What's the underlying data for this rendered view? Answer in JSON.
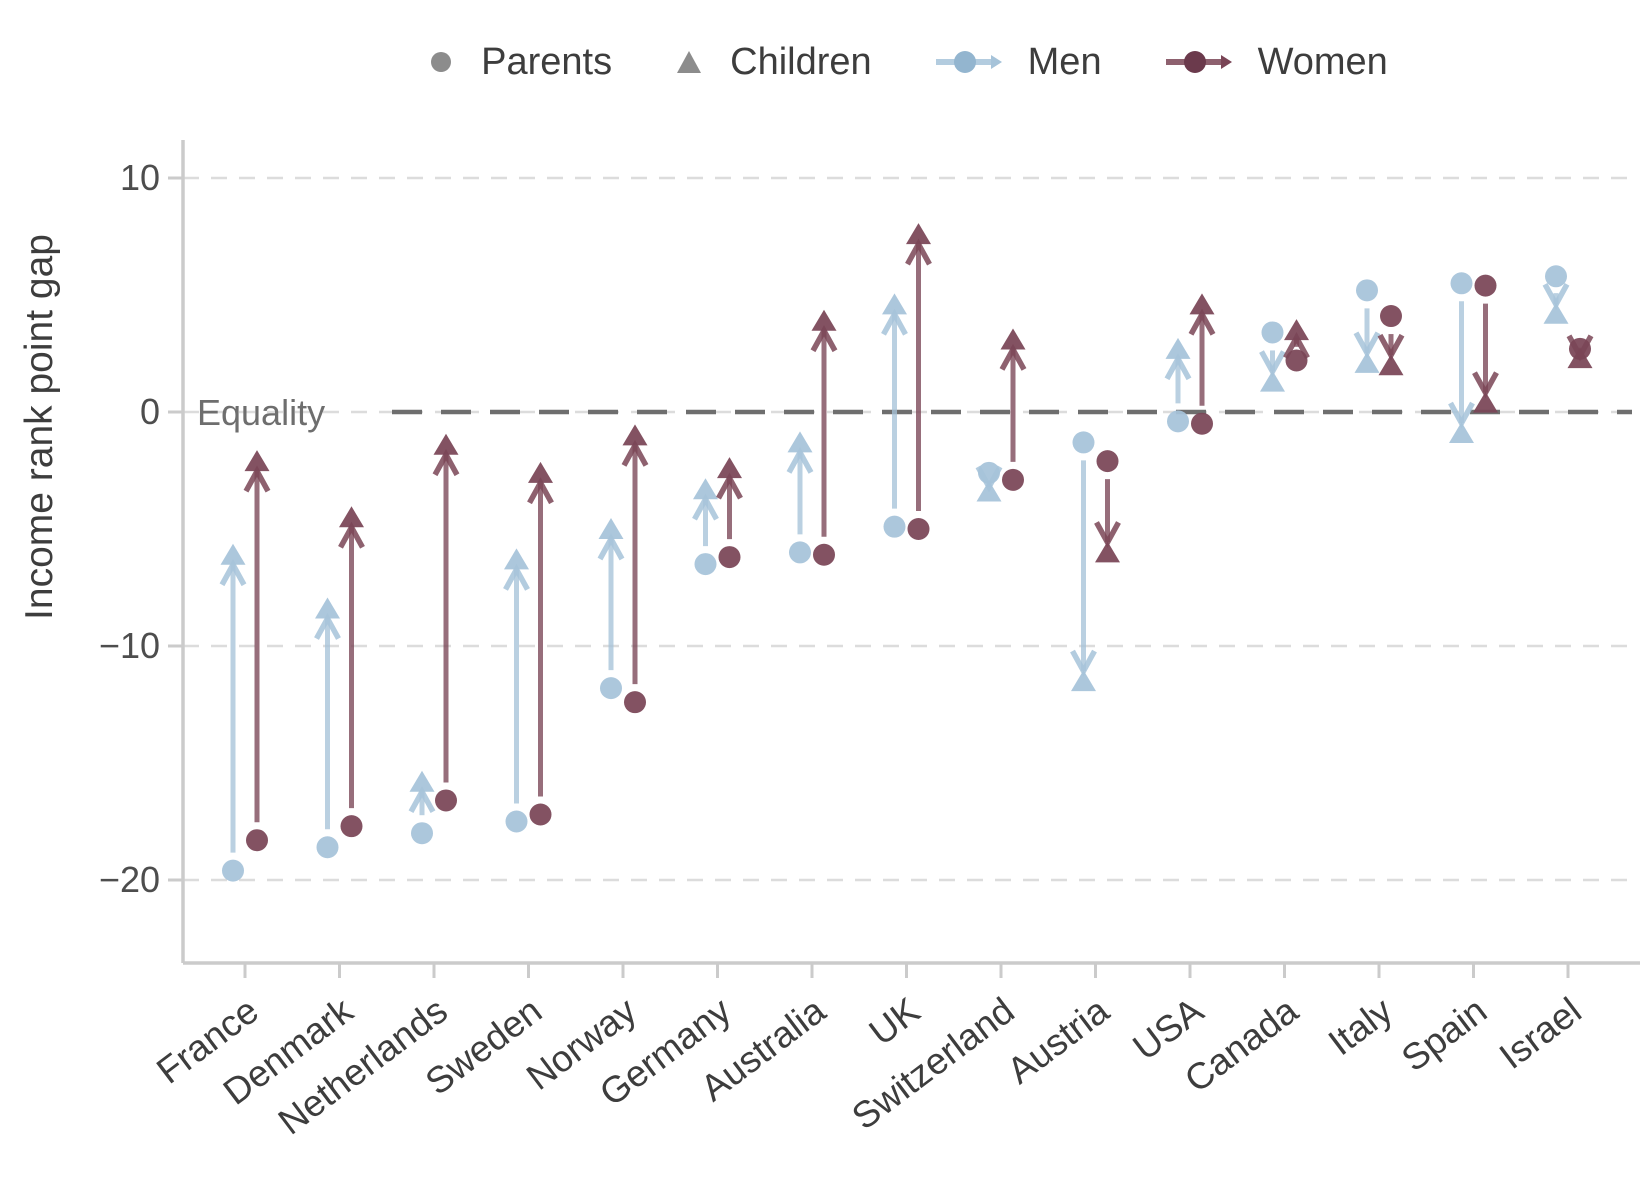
{
  "legend": {
    "parents": "Parents",
    "children": "Children",
    "men": "Men",
    "women": "Women"
  },
  "chart_data": {
    "type": "scatter",
    "subtype": "dumbbell-arrow (parent-to-child mobility gap, circle = parent, triangle = child, arrow shows change)",
    "title": "",
    "xlabel": "",
    "ylabel": "Income rank point gap",
    "equality_label": "Equality",
    "equality_value": 0,
    "yticks": [
      10,
      0,
      -10,
      -20
    ],
    "ylim": [
      -24,
      12
    ],
    "grid": "horizontal dashed",
    "legend_position": "top",
    "categories": [
      "France",
      "Denmark",
      "Netherlands",
      "Sweden",
      "Norway",
      "Germany",
      "Australia",
      "UK",
      "Switzerland",
      "Austria",
      "USA",
      "Canada",
      "Italy",
      "Spain",
      "Israel"
    ],
    "series": [
      {
        "name": "Men",
        "color_key": "men",
        "parents": [
          -19.6,
          -18.6,
          -18.0,
          -17.5,
          -11.8,
          -6.5,
          -6.0,
          -4.9,
          -2.6,
          -1.3,
          -0.4,
          3.4,
          5.2,
          5.5,
          5.8
        ],
        "children": [
          -6.1,
          -8.4,
          -15.8,
          -6.3,
          -5.0,
          -3.3,
          -1.3,
          4.6,
          -3.4,
          -11.5,
          2.7,
          1.3,
          2.1,
          -0.9,
          4.2
        ]
      },
      {
        "name": "Women",
        "color_key": "women",
        "parents": [
          -18.3,
          -17.7,
          -16.6,
          -17.2,
          -12.4,
          -6.2,
          -6.1,
          -5.0,
          -2.9,
          -2.1,
          -0.5,
          2.2,
          4.1,
          5.4,
          2.7
        ],
        "children": [
          -2.1,
          -4.5,
          -1.4,
          -2.6,
          -1.0,
          -2.4,
          3.9,
          7.6,
          3.1,
          -6.0,
          4.6,
          3.5,
          2.0,
          0.4,
          2.3
        ]
      }
    ],
    "colors": {
      "men": "#a6c3d9",
      "women": "#7a4556",
      "legend_gray": "#8c8c8c",
      "gridline": "#dcdcdc",
      "axis": "#cbcbcb",
      "equality_line": "#6e6e6e",
      "tick_label": "#4d4d4d",
      "axis_title": "#3d3d3d",
      "category_label": "#3d3d3d"
    }
  }
}
